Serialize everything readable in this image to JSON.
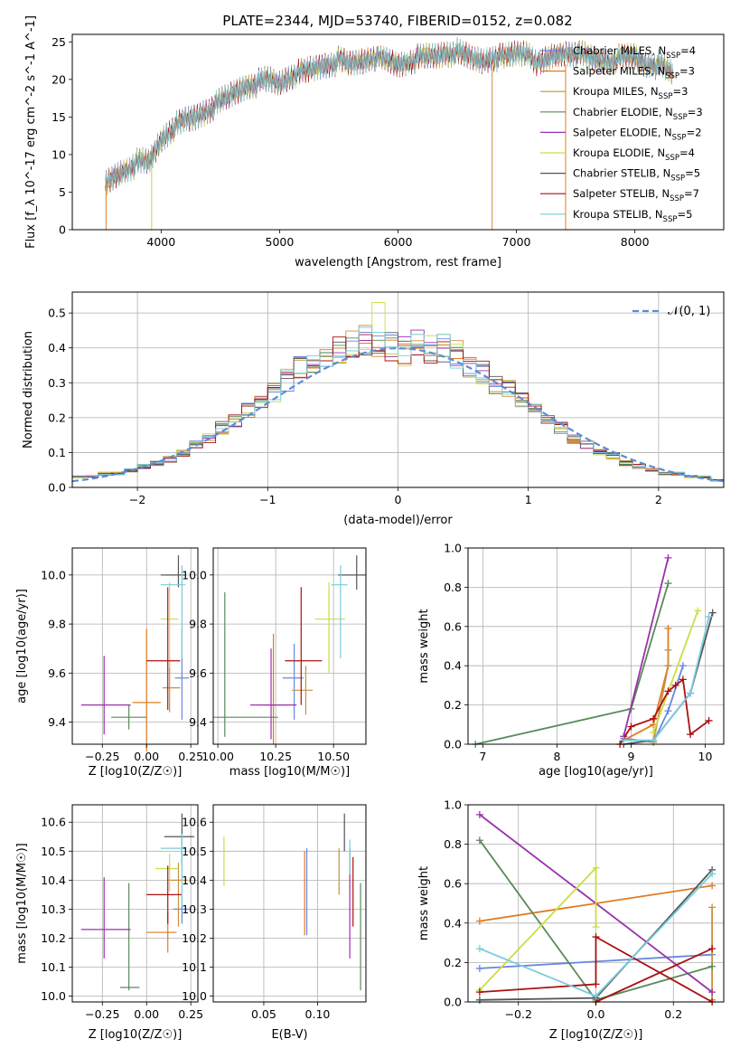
{
  "chart_data": [
    {
      "type": "line",
      "title": "PLATE=2344, MJD=53740, FIBERID=0152, z=0.082",
      "xlabel": "wavelength [Angstrom, rest frame]",
      "ylabel": "Flux [f_λ 10^-17 erg cm^-2 s^-1 A^-1]",
      "xlim": [
        3250,
        8750
      ],
      "ylim": [
        0,
        26
      ],
      "xticks": [
        "4000",
        "5000",
        "6000",
        "7000",
        "8000"
      ],
      "yticks": [
        "0",
        "5",
        "10",
        "15",
        "20",
        "25"
      ],
      "grid": false,
      "legend_position": "top-right",
      "x": [
        3530,
        3600,
        3700,
        3800,
        3900,
        4000,
        4100,
        4200,
        4300,
        4400,
        4500,
        4600,
        4700,
        4800,
        4900,
        5000,
        5100,
        5200,
        5300,
        5400,
        5500,
        5600,
        5700,
        5800,
        5900,
        6000,
        6100,
        6200,
        6300,
        6400,
        6500,
        6600,
        6700,
        6800,
        6900,
        7000,
        7100,
        7200,
        7300,
        7400,
        7500,
        7600,
        7700,
        7800,
        7900,
        8000,
        8100,
        8200,
        8300
      ],
      "y": [
        6,
        7,
        8,
        9,
        9,
        12,
        13.5,
        14.5,
        15,
        16,
        17,
        18,
        19,
        19.5,
        20,
        19.5,
        20.5,
        21,
        21.5,
        22,
        22.5,
        22,
        22.5,
        23,
        22.5,
        22,
        22.5,
        23,
        23,
        23.5,
        23.5,
        23,
        22.5,
        23,
        23,
        23.5,
        23.5,
        22,
        23,
        23.5,
        23.5,
        23,
        22.5,
        22.5,
        23,
        23,
        22,
        22,
        21
      ],
      "series": [
        {
          "name": "Chabrier MILES, N_SSP=4",
          "label_main": "Chabrier MILES, N",
          "label_sub": "SSP",
          "label_tail": "=4",
          "color": "#6688dd"
        },
        {
          "name": "Salpeter MILES, N_SSP=3",
          "label_main": "Salpeter MILES, N",
          "label_sub": "SSP",
          "label_tail": "=3",
          "color": "#e07b20"
        },
        {
          "name": "Kroupa MILES, N_SSP=3",
          "label_main": "Kroupa MILES, N",
          "label_sub": "SSP",
          "label_tail": "=3",
          "color": "#c89040"
        },
        {
          "name": "Chabrier ELODIE, N_SSP=3",
          "label_main": "Chabrier ELODIE, N",
          "label_sub": "SSP",
          "label_tail": "=3",
          "color": "#5a8a5a"
        },
        {
          "name": "Salpeter ELODIE, N_SSP=2",
          "label_main": "Salpeter ELODIE, N",
          "label_sub": "SSP",
          "label_tail": "=2",
          "color": "#9933aa"
        },
        {
          "name": "Kroupa ELODIE, N_SSP=4",
          "label_main": "Kroupa ELODIE, N",
          "label_sub": "SSP",
          "label_tail": "=4",
          "color": "#ccdd44"
        },
        {
          "name": "Chabrier STELIB, N_SSP=5",
          "label_main": "Chabrier STELIB, N",
          "label_sub": "SSP",
          "label_tail": "=5",
          "color": "#555555"
        },
        {
          "name": "Salpeter STELIB, N_SSP=7",
          "label_main": "Salpeter STELIB, N",
          "label_sub": "SSP",
          "label_tail": "=7",
          "color": "#aa1111"
        },
        {
          "name": "Kroupa STELIB, N_SSP=5",
          "label_main": "Kroupa STELIB, N",
          "label_sub": "SSP",
          "label_tail": "=5",
          "color": "#77ccdd"
        }
      ]
    },
    {
      "type": "line",
      "xlabel": "(data-model)/error",
      "ylabel": "Normed distribution",
      "xlim": [
        -2.5,
        2.5
      ],
      "ylim": [
        0,
        0.56
      ],
      "xticks": [
        "−2",
        "−1",
        "0",
        "1",
        "2"
      ],
      "yticks": [
        "0.0",
        "0.1",
        "0.2",
        "0.3",
        "0.4",
        "0.5"
      ],
      "grid": true,
      "legend_position": "top-right",
      "gauss_label": "𝒩(0, 1)",
      "x": [
        -2.5,
        -2.4,
        -2.3,
        -2.2,
        -2.1,
        -2.0,
        -1.9,
        -1.8,
        -1.7,
        -1.6,
        -1.5,
        -1.4,
        -1.3,
        -1.2,
        -1.1,
        -1.0,
        -0.9,
        -0.8,
        -0.7,
        -0.6,
        -0.5,
        -0.4,
        -0.3,
        -0.2,
        -0.1,
        0.0,
        0.1,
        0.2,
        0.3,
        0.4,
        0.5,
        0.6,
        0.7,
        0.8,
        0.9,
        1.0,
        1.1,
        1.2,
        1.3,
        1.4,
        1.5,
        1.6,
        1.7,
        1.8,
        1.9,
        2.0,
        2.1,
        2.2,
        2.3,
        2.4
      ],
      "y": [
        0.03,
        0.03,
        0.04,
        0.04,
        0.05,
        0.06,
        0.07,
        0.08,
        0.1,
        0.12,
        0.14,
        0.17,
        0.19,
        0.22,
        0.25,
        0.27,
        0.31,
        0.34,
        0.36,
        0.37,
        0.39,
        0.41,
        0.42,
        0.41,
        0.4,
        0.39,
        0.41,
        0.4,
        0.4,
        0.38,
        0.35,
        0.33,
        0.3,
        0.28,
        0.25,
        0.22,
        0.2,
        0.17,
        0.14,
        0.12,
        0.1,
        0.09,
        0.07,
        0.06,
        0.05,
        0.04,
        0.04,
        0.03,
        0.03,
        0.02
      ]
    },
    {
      "type": "scatter",
      "xlabel": "Z [log10(Z/Z☉)]",
      "ylabel": "age [log10(age/yr)]",
      "xlim": [
        -0.42,
        0.29
      ],
      "ylim": [
        9.31,
        10.11
      ],
      "xticks": [
        "−0.25",
        "0.00",
        "0.25"
      ],
      "yticks": [
        "9.4",
        "9.6",
        "9.8",
        "10.0"
      ],
      "grid": true,
      "x": [
        0.2,
        0.0,
        0.13,
        -0.1,
        -0.24,
        0.13,
        0.18,
        0.12,
        0.2
      ],
      "y": [
        9.58,
        9.48,
        9.54,
        9.42,
        9.47,
        9.82,
        10.0,
        9.65,
        9.96
      ]
    },
    {
      "type": "scatter",
      "xlabel": "mass [log10(M/M☉)]",
      "ylabel": "",
      "xlim": [
        9.98,
        10.64
      ],
      "ylim": [
        9.31,
        10.11
      ],
      "xticks": [
        "10.00",
        "10.25",
        "10.50"
      ],
      "yticks": [
        "9.4",
        "9.6",
        "9.8",
        "10.0"
      ],
      "grid": true,
      "x": [
        10.33,
        10.24,
        10.38,
        10.03,
        10.23,
        10.48,
        10.6,
        10.36,
        10.53
      ],
      "y": [
        9.58,
        9.47,
        9.53,
        9.42,
        9.47,
        9.82,
        10.0,
        9.65,
        9.96
      ]
    },
    {
      "type": "line",
      "xlabel": "age [log10(age/yr)]",
      "ylabel": "mass weight",
      "xlim": [
        6.8,
        10.25
      ],
      "ylim": [
        0,
        1
      ],
      "xticks": [
        "7",
        "8",
        "9",
        "10"
      ],
      "yticks": [
        "0.0",
        "0.2",
        "0.4",
        "0.6",
        "0.8",
        "1.0"
      ],
      "grid": true,
      "series": [
        {
          "name": "Chabrier MILES",
          "x": [
            8.9,
            9.3,
            9.5,
            9.7
          ],
          "y": [
            0.03,
            0.01,
            0.17,
            0.4
          ]
        },
        {
          "name": "Salpeter MILES",
          "x": [
            8.9,
            9.3,
            9.5,
            9.5
          ],
          "y": [
            0.02,
            0.1,
            0.4,
            0.59
          ]
        },
        {
          "name": "Kroupa MILES",
          "x": [
            9.3,
            9.5,
            9.5
          ],
          "y": [
            0.01,
            0.4,
            0.48
          ]
        },
        {
          "name": "Chabrier ELODIE",
          "x": [
            6.9,
            9.0,
            9.5
          ],
          "y": [
            0.0,
            0.18,
            0.82
          ]
        },
        {
          "name": "Salpeter ELODIE",
          "x": [
            8.9,
            9.5
          ],
          "y": [
            0.04,
            0.95
          ]
        },
        {
          "name": "Kroupa ELODIE",
          "x": [
            9.3,
            9.9
          ],
          "y": [
            0.06,
            0.68
          ]
        },
        {
          "name": "Chabrier STELIB",
          "x": [
            8.9,
            9.3,
            9.8,
            10.1
          ],
          "y": [
            0.0,
            0.02,
            0.26,
            0.67
          ]
        },
        {
          "name": "Salpeter STELIB",
          "x": [
            8.85,
            9.0,
            9.3,
            9.5,
            9.6,
            9.7,
            9.8,
            10.05
          ],
          "y": [
            0.0,
            0.09,
            0.13,
            0.27,
            0.3,
            0.33,
            0.05,
            0.12
          ]
        },
        {
          "name": "Kroupa STELIB",
          "x": [
            8.9,
            9.3,
            9.8,
            10.05
          ],
          "y": [
            0.02,
            0.02,
            0.26,
            0.65
          ]
        }
      ]
    },
    {
      "type": "scatter",
      "xlabel": "Z [log10(Z/Z☉)]",
      "ylabel": "mass [log10(M/M☉)]",
      "xlim": [
        -0.42,
        0.29
      ],
      "ylim": [
        9.98,
        10.66
      ],
      "xticks": [
        "−0.25",
        "0.00",
        "0.25"
      ],
      "yticks": [
        "10.0",
        "10.1",
        "10.2",
        "10.3",
        "10.4",
        "10.5",
        "10.6"
      ],
      "grid": true,
      "x": [
        0.2,
        0.12,
        0.18,
        -0.1,
        -0.24,
        0.13,
        0.2,
        0.12,
        0.2
      ],
      "y": [
        10.3,
        10.22,
        10.4,
        10.03,
        10.23,
        10.44,
        10.55,
        10.35,
        10.51
      ]
    },
    {
      "type": "scatter",
      "xlabel": "E(B-V)",
      "ylabel": "",
      "xlim": [
        0.003,
        0.145
      ],
      "ylim": [
        9.98,
        10.66
      ],
      "xticks": [
        "0.05",
        "0.10"
      ],
      "yticks": [
        "10.0",
        "10.1",
        "10.2",
        "10.3",
        "10.4",
        "10.5",
        "10.6"
      ],
      "grid": true,
      "x": [
        0.09,
        0.088,
        0.12,
        0.14,
        0.13,
        0.013,
        0.125,
        0.133,
        0.13
      ],
      "y": [
        10.28,
        10.3,
        10.38,
        10.2,
        10.27,
        10.46,
        10.55,
        10.34,
        10.5
      ]
    },
    {
      "type": "line",
      "xlabel": "Z [log10(Z/Z☉)]",
      "ylabel": "mass weight",
      "xlim": [
        -0.33,
        0.33
      ],
      "ylim": [
        0,
        1
      ],
      "xticks": [
        "−0.2",
        "0.0",
        "0.2"
      ],
      "yticks": [
        "0.0",
        "0.2",
        "0.4",
        "0.6",
        "0.8",
        "1.0"
      ],
      "grid": true,
      "series": [
        {
          "name": "Chabrier MILES",
          "x": [
            -0.3,
            0.3
          ],
          "y": [
            0.17,
            0.24
          ]
        },
        {
          "name": "Salpeter MILES",
          "x": [
            -0.3,
            0.3
          ],
          "y": [
            0.41,
            0.59
          ]
        },
        {
          "name": "Kroupa MILES",
          "x": [
            0.3,
            0.3
          ],
          "y": [
            0.48,
            0.01
          ]
        },
        {
          "name": "Chabrier ELODIE",
          "x": [
            -0.3,
            0.0,
            0.3
          ],
          "y": [
            0.82,
            0.01,
            0.18
          ]
        },
        {
          "name": "Salpeter ELODIE",
          "x": [
            -0.3,
            0.3
          ],
          "y": [
            0.95,
            0.05
          ]
        },
        {
          "name": "Kroupa ELODIE",
          "x": [
            -0.3,
            0.0,
            0.0
          ],
          "y": [
            0.06,
            0.68,
            0.38
          ]
        },
        {
          "name": "Chabrier STELIB",
          "x": [
            -0.3,
            0.0,
            0.3
          ],
          "y": [
            0.01,
            0.02,
            0.67
          ]
        },
        {
          "name": "Salpeter STELIB",
          "x": [
            -0.3,
            0.0,
            0.0,
            0.3
          ],
          "y": [
            0.05,
            0.09,
            0.33,
            0.0
          ]
        },
        {
          "name": "Salpeter STELIB",
          "x": [
            0.0,
            0.3
          ],
          "y": [
            0.0,
            0.27
          ]
        },
        {
          "name": "Kroupa STELIB",
          "x": [
            -0.3,
            0.0,
            0.3
          ],
          "y": [
            0.27,
            0.03,
            0.65
          ]
        }
      ]
    }
  ]
}
